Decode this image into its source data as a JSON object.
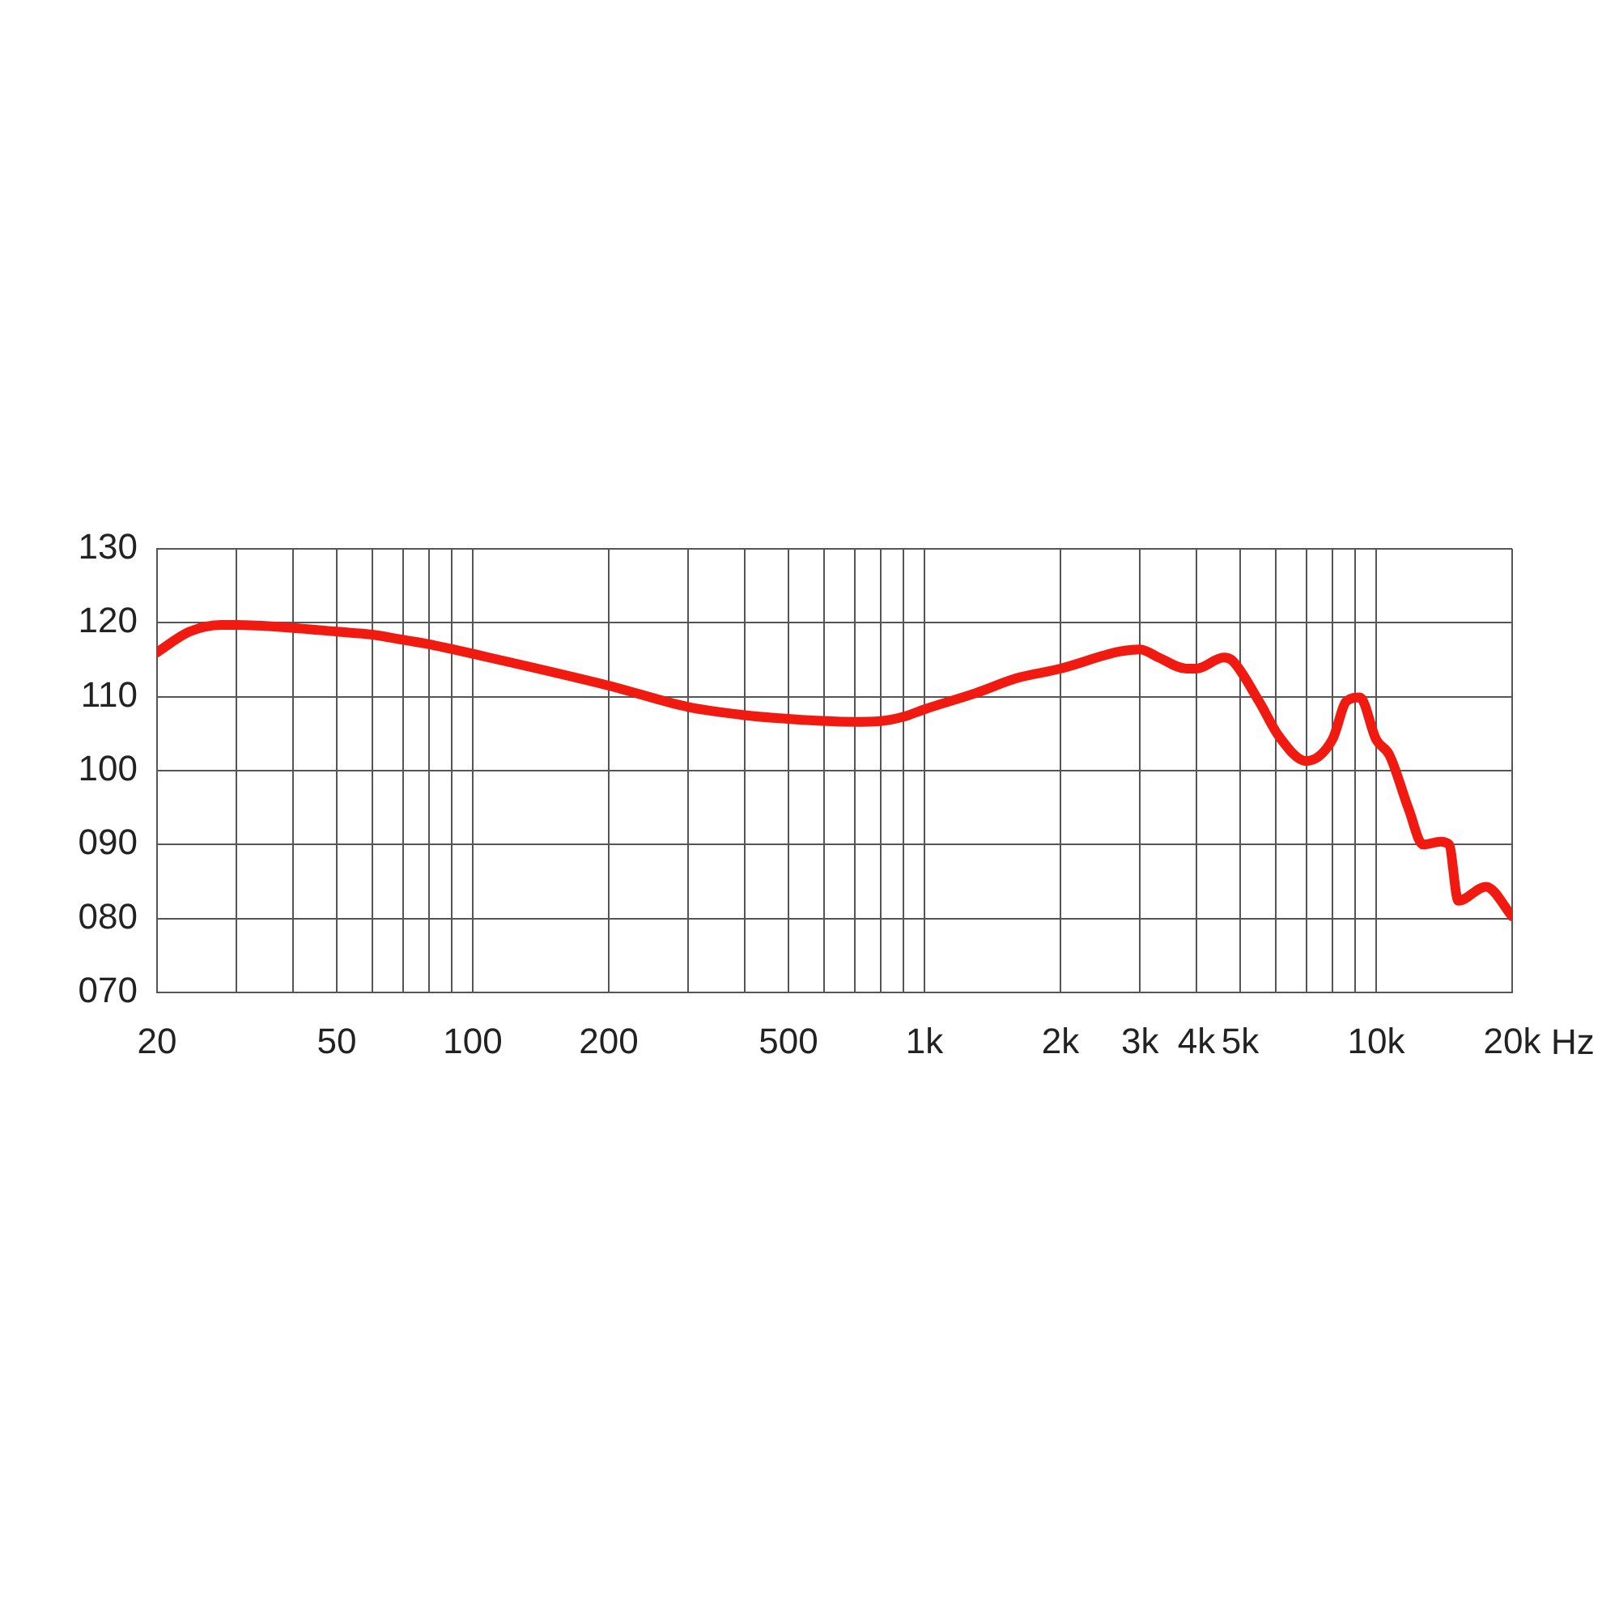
{
  "chart_data": {
    "type": "line",
    "xlabel": "Hz",
    "log": "x",
    "grid": true,
    "legend": false,
    "marker": "none",
    "line_style": "solid",
    "xlim": [
      20,
      20000
    ],
    "ylim": [
      70,
      130
    ],
    "xticks": [
      20,
      {
        "value": 30,
        "label": null
      },
      {
        "value": 40,
        "label": null
      },
      50,
      {
        "value": 60,
        "label": null
      },
      {
        "value": 70,
        "label": null
      },
      {
        "value": 80,
        "label": null
      },
      {
        "value": 90,
        "label": null
      },
      100,
      200,
      {
        "value": 300,
        "label": null
      },
      {
        "value": 400,
        "label": null
      },
      500,
      {
        "value": 600,
        "label": null
      },
      {
        "value": 700,
        "label": null
      },
      {
        "value": 800,
        "label": null
      },
      {
        "value": 900,
        "label": null
      },
      {
        "value": 1000,
        "label": "1k"
      },
      {
        "value": 2000,
        "label": "2k"
      },
      {
        "value": 3000,
        "label": "3k"
      },
      {
        "value": 4000,
        "label": "4k"
      },
      {
        "value": 5000,
        "label": "5k"
      },
      {
        "value": 6000,
        "label": null
      },
      {
        "value": 7000,
        "label": null
      },
      {
        "value": 8000,
        "label": null
      },
      {
        "value": 9000,
        "label": null
      },
      {
        "value": 10000,
        "label": "10k"
      },
      {
        "value": 20000,
        "label": "20k"
      }
    ],
    "yticks": [
      {
        "value": 70,
        "label": "070"
      },
      {
        "value": 80,
        "label": "080"
      },
      {
        "value": 90,
        "label": "090"
      },
      100,
      110,
      120,
      130
    ],
    "series": [
      {
        "color": "#f01a10",
        "x": [
          20,
          23.6,
          27.8,
          30,
          40,
          50,
          60,
          70,
          80,
          100,
          200,
          300,
          400,
          500,
          700,
          800,
          900,
          1000,
          1300,
          1600,
          2000,
          2700,
          3000,
          3300,
          3800,
          4000,
          4600,
          4800,
          5500,
          6100,
          7000,
          8000,
          8600,
          9200,
          10000,
          10700,
          11800,
          12700,
          13900,
          14500,
          15200,
          17500,
          20000
        ],
        "values": [
          116,
          118.8,
          119.7,
          119.7,
          119.3,
          118.8,
          118.4,
          117.7,
          117.1,
          115.8,
          111.5,
          108.6,
          107.5,
          107,
          106.6,
          106.7,
          107.3,
          108.3,
          110.5,
          112.5,
          113.8,
          116.1,
          116.4,
          115.3,
          113.8,
          113.8,
          115.3,
          114.9,
          109.4,
          104.6,
          101.3,
          104.2,
          109.4,
          109.9,
          104.2,
          102.1,
          94.8,
          90,
          90.4,
          90,
          82.4,
          84.3,
          80.3
        ]
      }
    ]
  }
}
